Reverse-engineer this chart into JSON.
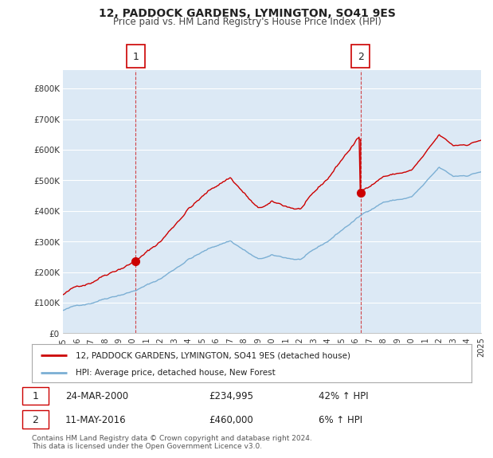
{
  "title": "12, PADDOCK GARDENS, LYMINGTON, SO41 9ES",
  "subtitle": "Price paid vs. HM Land Registry's House Price Index (HPI)",
  "background_color": "#ffffff",
  "plot_bg_color": "#dce9f5",
  "grid_color": "#ffffff",
  "hpi_line_color": "#7bafd4",
  "price_line_color": "#cc0000",
  "annotation_color": "#cc0000",
  "legend_label_price": "12, PADDOCK GARDENS, LYMINGTON, SO41 9ES (detached house)",
  "legend_label_hpi": "HPI: Average price, detached house, New Forest",
  "transaction1_label": "1",
  "transaction1_date": "24-MAR-2000",
  "transaction1_price": "£234,995",
  "transaction1_hpi": "42% ↑ HPI",
  "transaction2_label": "2",
  "transaction2_date": "11-MAY-2016",
  "transaction2_price": "£460,000",
  "transaction2_hpi": "6% ↑ HPI",
  "footer": "Contains HM Land Registry data © Crown copyright and database right 2024.\nThis data is licensed under the Open Government Licence v3.0.",
  "ylim": [
    0,
    860000
  ],
  "yticks": [
    0,
    100000,
    200000,
    300000,
    400000,
    500000,
    600000,
    700000,
    800000
  ],
  "ytick_labels": [
    "£0",
    "£100K",
    "£200K",
    "£300K",
    "£400K",
    "£500K",
    "£600K",
    "£700K",
    "£800K"
  ],
  "transaction1_x": 2000.21,
  "transaction1_y": 234995,
  "transaction2_x": 2016.36,
  "transaction2_y": 460000,
  "transaction2_peak_y": 630000,
  "xtick_years": [
    1995,
    1996,
    1997,
    1998,
    1999,
    2000,
    2001,
    2002,
    2003,
    2004,
    2005,
    2006,
    2007,
    2008,
    2009,
    2010,
    2011,
    2012,
    2013,
    2014,
    2015,
    2016,
    2017,
    2018,
    2019,
    2020,
    2021,
    2022,
    2023,
    2024,
    2025
  ]
}
